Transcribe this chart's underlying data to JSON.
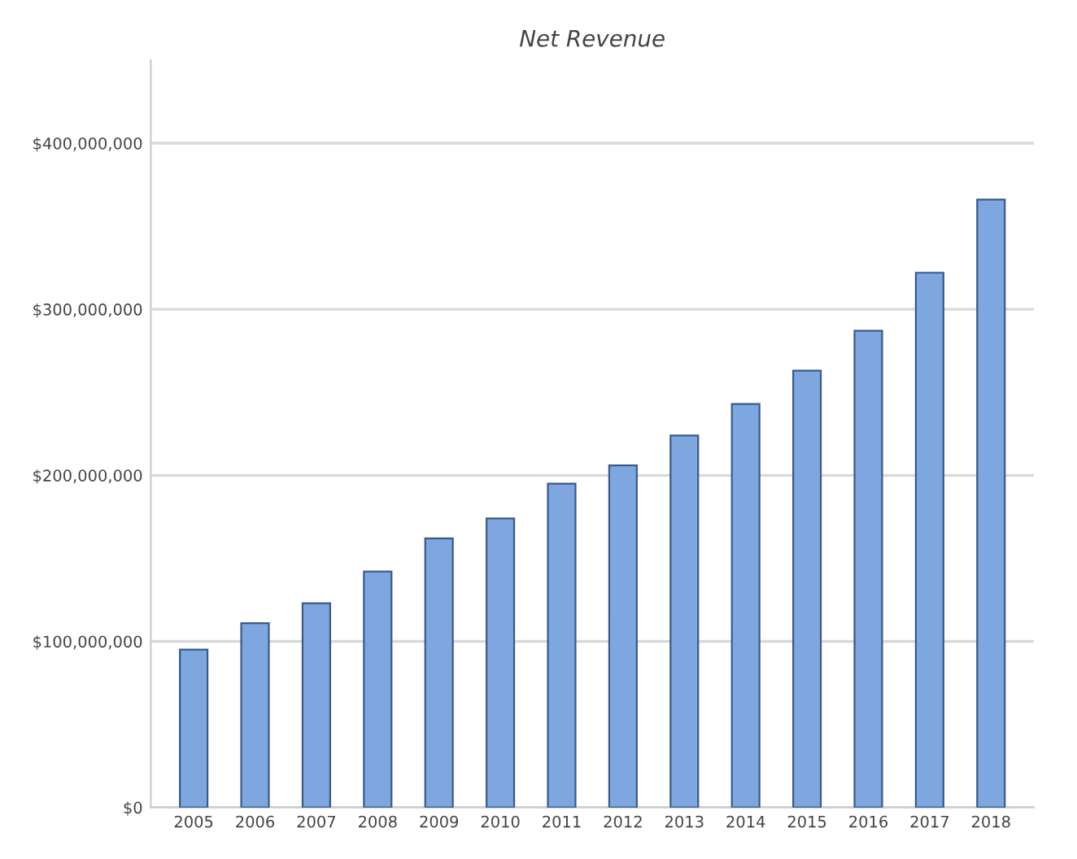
{
  "chart_data": {
    "type": "bar",
    "title": "Net Revenue",
    "categories": [
      "2005",
      "2006",
      "2007",
      "2008",
      "2009",
      "2010",
      "2011",
      "2012",
      "2013",
      "2014",
      "2015",
      "2016",
      "2017",
      "2018"
    ],
    "values": [
      95000000,
      111000000,
      123000000,
      142000000,
      162000000,
      174000000,
      195000000,
      206000000,
      224000000,
      243000000,
      263000000,
      287000000,
      322000000,
      366000000
    ],
    "color": "#7ea7e0",
    "ylim": [
      0,
      450000000
    ],
    "yticks": [
      {
        "value": 0,
        "label": "$0"
      },
      {
        "value": 100000000,
        "label": "$100,000,000"
      },
      {
        "value": 200000000,
        "label": "$200,000,000"
      },
      {
        "value": 300000000,
        "label": "$300,000,000"
      },
      {
        "value": 400000000,
        "label": "$400,000,000"
      }
    ],
    "grid": "y",
    "legend": false
  }
}
